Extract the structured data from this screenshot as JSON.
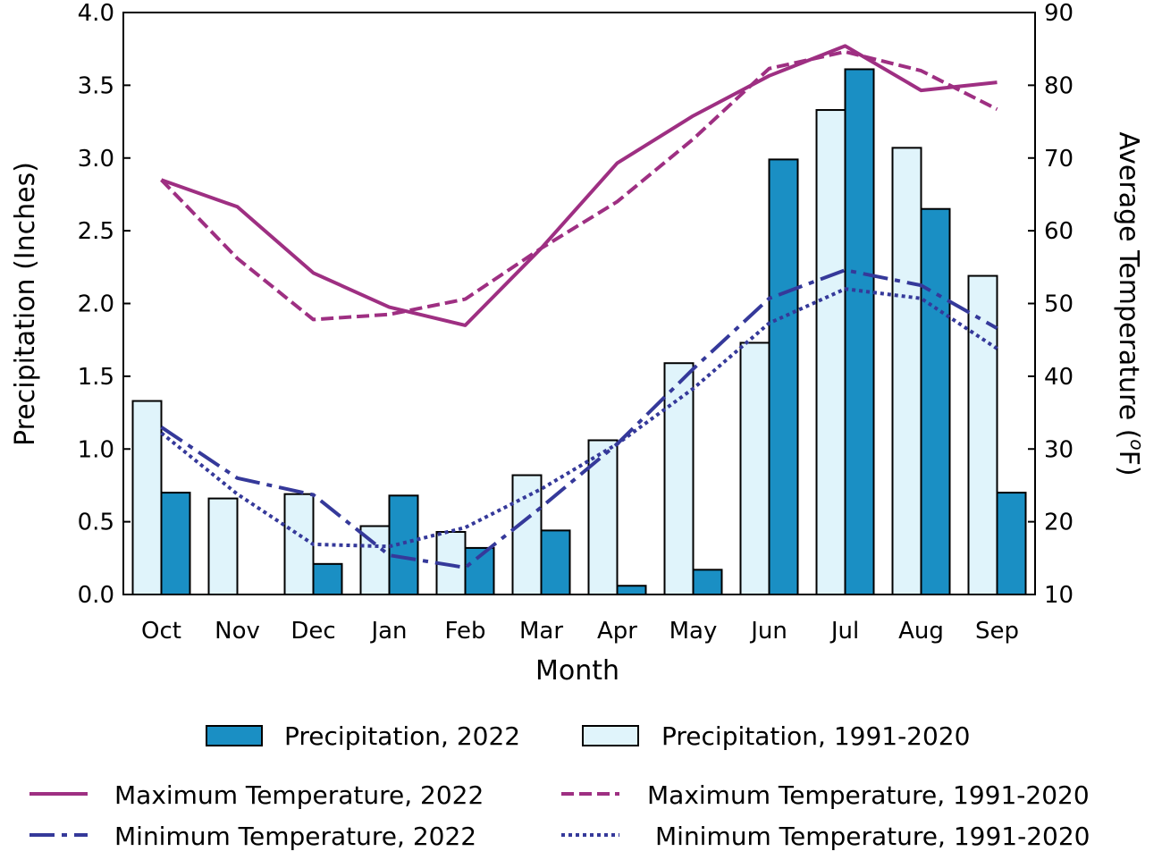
{
  "chart_data": {
    "type": "bar+line",
    "xlabel": "Month",
    "ylabel_left": "Precipitation (Inches)",
    "ylabel_right_prefix": "Average Temperature (",
    "ylabel_right_sup": "o",
    "ylabel_right_suffix": "F)",
    "categories": [
      "Oct",
      "Nov",
      "Dec",
      "Jan",
      "Feb",
      "Mar",
      "Apr",
      "May",
      "Jun",
      "Jul",
      "Aug",
      "Sep"
    ],
    "ylim_left": [
      0,
      4
    ],
    "yticks_left": [
      "0.0",
      "0.5",
      "1.0",
      "1.5",
      "2.0",
      "2.5",
      "3.0",
      "3.5",
      "4.0"
    ],
    "ylim_right": [
      10,
      90
    ],
    "yticks_right": [
      "10",
      "20",
      "30",
      "40",
      "50",
      "60",
      "70",
      "80",
      "90"
    ],
    "bar_series": [
      {
        "name": "Precipitation, 1991-2020",
        "color": "#e0f4fb",
        "values": [
          1.33,
          0.66,
          0.69,
          0.47,
          0.43,
          0.82,
          1.06,
          1.59,
          1.73,
          3.33,
          3.07,
          2.19
        ]
      },
      {
        "name": "Precipitation, 2022",
        "color": "#1a8fc4",
        "values": [
          0.7,
          0.0,
          0.21,
          0.68,
          0.32,
          0.44,
          0.06,
          0.17,
          2.99,
          3.61,
          2.65,
          0.7
        ]
      }
    ],
    "line_series": [
      {
        "name": "Maximum Temperature, 2022",
        "color": "#9e2f82",
        "style": "solid",
        "values": [
          67.0,
          63.3,
          54.2,
          49.5,
          47.0,
          57.6,
          69.3,
          75.8,
          81.3,
          85.4,
          79.3,
          80.4
        ]
      },
      {
        "name": "Maximum Temperature, 1991-2020",
        "color": "#9e2f82",
        "style": "dashed",
        "values": [
          67.0,
          56.2,
          47.8,
          48.5,
          50.6,
          57.6,
          64.0,
          72.6,
          82.3,
          84.6,
          82.0,
          76.7
        ]
      },
      {
        "name": "Minimum Temperature, 2022",
        "color": "#35399a",
        "style": "dashdot",
        "values": [
          33.0,
          26.0,
          23.7,
          15.4,
          13.7,
          22.0,
          30.7,
          41.0,
          50.7,
          54.6,
          52.5,
          46.6
        ]
      },
      {
        "name": "Minimum Temperature, 1991-2020",
        "color": "#35399a",
        "style": "dotted",
        "values": [
          32.2,
          23.8,
          16.9,
          16.6,
          19.2,
          24.5,
          30.7,
          38.3,
          47.3,
          52.0,
          50.7,
          43.8
        ]
      }
    ],
    "legend": {
      "precip_2022": "Precipitation, 2022",
      "precip_normal": "Precipitation, 1991-2020",
      "max_2022": "Maximum Temperature, 2022",
      "max_normal": "Maximum Temperature, 1991-2020",
      "min_2022": "Minimum Temperature, 2022",
      "min_normal": "Minimum Temperature, 1991-2020"
    }
  }
}
